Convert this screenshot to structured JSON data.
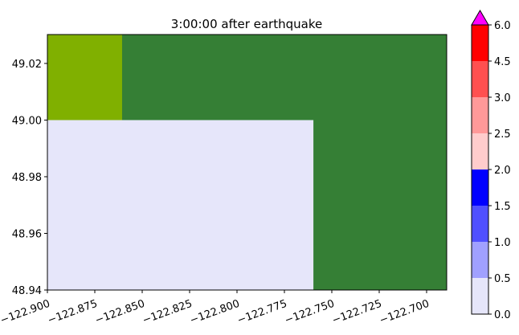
{
  "chart_data": {
    "type": "heatmap",
    "title": "3:00:00 after earthquake",
    "xlim": [
      -122.9,
      -122.6894
    ],
    "ylim": [
      48.94,
      49.0302
    ],
    "xticks": [
      {
        "value": -122.9,
        "label": "−122.900"
      },
      {
        "value": -122.875,
        "label": "−122.875"
      },
      {
        "value": -122.85,
        "label": "−122.850"
      },
      {
        "value": -122.825,
        "label": "−122.825"
      },
      {
        "value": -122.8,
        "label": "−122.800"
      },
      {
        "value": -122.775,
        "label": "−122.775"
      },
      {
        "value": -122.75,
        "label": "−122.750"
      },
      {
        "value": -122.725,
        "label": "−122.725"
      },
      {
        "value": -122.7,
        "label": "−122.700"
      }
    ],
    "yticks": [
      {
        "value": 48.94,
        "label": "48.94"
      },
      48.96,
      48.98,
      {
        "value": 49.0,
        "label": "49.00"
      },
      49.02
    ],
    "cells": [
      {
        "x": [
          -122.9,
          -122.6894
        ],
        "y": [
          48.94,
          49.0302
        ],
        "color": "#357f35"
      },
      {
        "x": [
          -122.9,
          -122.8606
        ],
        "y": [
          49.0,
          49.0302
        ],
        "color": "#80b000"
      },
      {
        "x": [
          -122.9,
          -122.7597
        ],
        "y": [
          48.94,
          49.0
        ],
        "color": "#e6e6fa"
      }
    ],
    "colorbar": {
      "boundaries": [
        {
          "value": 0,
          "label": "0.0"
        },
        {
          "value": 0.5,
          "label": "0.5"
        },
        {
          "value": 1,
          "label": "1.0"
        },
        {
          "value": 1.5,
          "label": "1.5"
        },
        {
          "value": 2,
          "label": "2.0"
        },
        {
          "value": 2.5,
          "label": "2.5"
        },
        {
          "value": 3,
          "label": "3.0"
        },
        {
          "value": 4.5,
          "label": "4.5"
        },
        {
          "value": 6,
          "label": "6.0"
        }
      ],
      "colors": [
        "#e6e6fa",
        "#a0a0ff",
        "#5050ff",
        "#0000ff",
        "#ffcccc",
        "#ff9999",
        "#ff5050",
        "#ff0000"
      ],
      "extend_color": "#ff00ff"
    }
  }
}
